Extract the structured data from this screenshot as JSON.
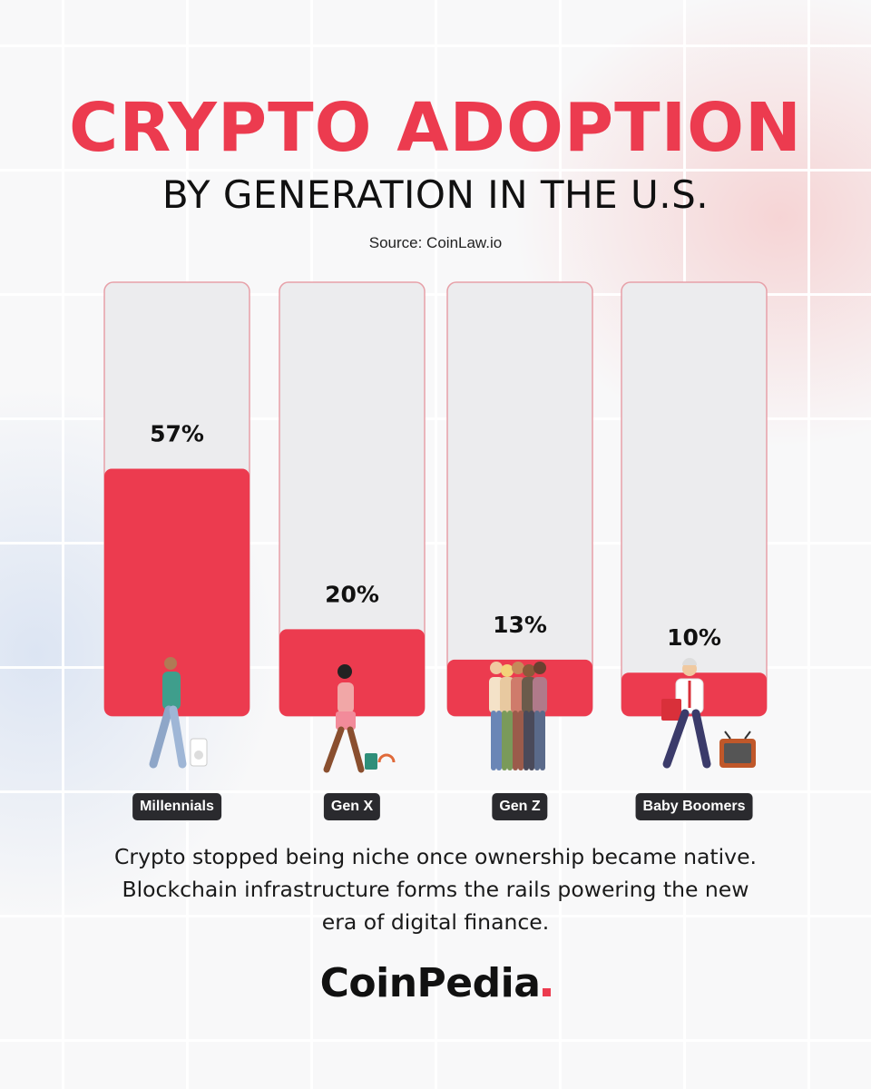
{
  "header": {
    "title": "CRYPTO ADOPTION",
    "subtitle": "BY GENERATION IN THE U.S.",
    "source": "Source: CoinLaw.io"
  },
  "chart_data": {
    "type": "bar",
    "title": "CRYPTO ADOPTION BY GENERATION IN THE U.S.",
    "categories": [
      "Millennials",
      "Gen X",
      "Gen Z",
      "Baby Boomers"
    ],
    "values": [
      57,
      20,
      13,
      10
    ],
    "value_labels": [
      "57%",
      "20%",
      "13%",
      "10%"
    ],
    "ylim": [
      0,
      100
    ],
    "grid": false,
    "legend": "none"
  },
  "colors": {
    "accent": "#ec3b4f",
    "bar_track": "#ececee",
    "pill": "#2a2a2e"
  },
  "footer": {
    "text": "Crypto stopped being niche once ownership became native. Blockchain infrastructure forms the rails powering the new era of digital finance.",
    "brand": "CoinPedia"
  },
  "icons": [
    "person-walking-music-player-icon",
    "person-walking-headphones-icon",
    "group-selfie-icon",
    "businessman-tv-icon"
  ]
}
